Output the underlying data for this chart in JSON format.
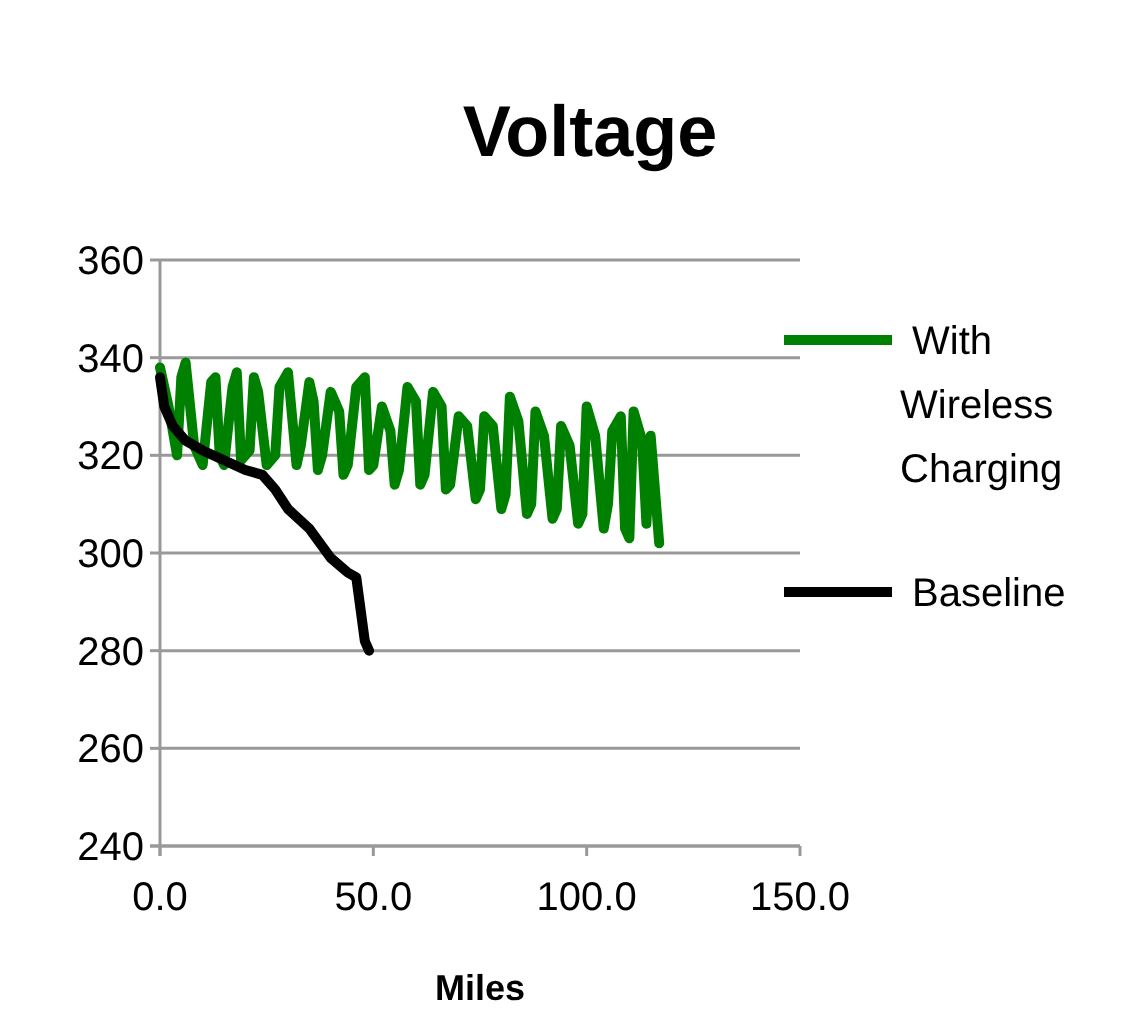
{
  "chart_data": {
    "type": "line",
    "title": "Voltage",
    "xlabel": "Miles",
    "xlim": [
      0,
      150
    ],
    "xticks": [
      {
        "value": 0,
        "label": "0.0"
      },
      {
        "value": 50,
        "label": "50.0"
      },
      {
        "value": 100,
        "label": "100.0"
      },
      {
        "value": 150,
        "label": "150.0"
      }
    ],
    "ylim": [
      240,
      360
    ],
    "yticks": [
      240,
      260,
      280,
      300,
      320,
      340,
      360
    ],
    "grid": "y",
    "legend": "right",
    "line_style": "solid",
    "marker": "none",
    "series": [
      {
        "name": "With Wireless Charging",
        "color": "#008000",
        "x": [
          0,
          2,
          4,
          5,
          6,
          8,
          10,
          12,
          13,
          14,
          15,
          17,
          18,
          19,
          21,
          22,
          23,
          25,
          27,
          28,
          30,
          32,
          33,
          35,
          36,
          37,
          38,
          40,
          42,
          43,
          44,
          46,
          48,
          49,
          50,
          52,
          54,
          55,
          56,
          58,
          60,
          61,
          62,
          64,
          66,
          67,
          68,
          70,
          72,
          74,
          75,
          76,
          78,
          80,
          81,
          82,
          84,
          86,
          87,
          88,
          90,
          92,
          93,
          94,
          96,
          98,
          99,
          100,
          102,
          104,
          105,
          106,
          108,
          109,
          110,
          111,
          113,
          114,
          115,
          117
        ],
        "values": [
          338,
          330,
          320,
          336,
          339,
          322,
          318,
          335,
          336,
          320,
          318,
          334,
          337,
          319,
          321,
          336,
          333,
          318,
          320,
          334,
          337,
          318,
          322,
          335,
          331,
          317,
          320,
          333,
          329,
          316,
          318,
          334,
          336,
          317,
          318,
          330,
          325,
          314,
          317,
          334,
          331,
          314,
          316,
          333,
          330,
          313,
          314,
          328,
          326,
          311,
          313,
          328,
          326,
          309,
          312,
          332,
          327,
          308,
          310,
          329,
          324,
          307,
          309,
          326,
          322,
          306,
          308,
          330,
          324,
          305,
          310,
          325,
          328,
          305,
          303,
          329,
          323,
          306,
          324,
          302
        ]
      },
      {
        "name": "Baseline",
        "color": "#000000",
        "x": [
          0,
          1,
          3,
          6,
          10,
          15,
          20,
          24,
          27,
          30,
          35,
          40,
          44,
          46,
          48,
          49
        ],
        "values": [
          336,
          330,
          326,
          323,
          321,
          319,
          317,
          316,
          313,
          309,
          305,
          299,
          296,
          295,
          282,
          280
        ]
      }
    ]
  }
}
